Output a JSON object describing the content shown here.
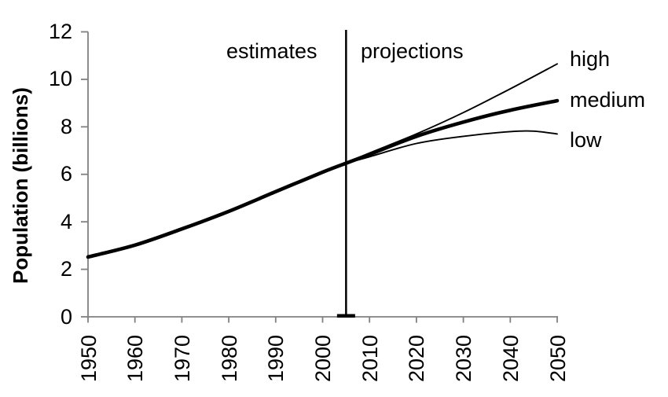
{
  "page": {
    "background": "#ffffff"
  },
  "colors": {
    "line": "#000000",
    "axis": "#808080",
    "text": "#000000",
    "background": "#ffffff"
  },
  "chart_data": {
    "type": "line",
    "title": "",
    "xlabel": "",
    "ylabel": "Population (billions)",
    "xlim": [
      1950,
      2050
    ],
    "ylim": [
      0,
      12
    ],
    "grid": false,
    "legend_position": "line-end-labels-right",
    "x_tick_labels": [
      "1950",
      "1960",
      "1970",
      "1980",
      "1990",
      "2000",
      "2010",
      "2020",
      "2030",
      "2040",
      "2050"
    ],
    "y_tick_labels": [
      "0",
      "2",
      "4",
      "6",
      "8",
      "10",
      "12"
    ],
    "divider": {
      "x": 2005
    },
    "annotations": [
      {
        "text": "estimates",
        "position": "left-of-divider-top"
      },
      {
        "text": "projections",
        "position": "right-of-divider-top"
      }
    ],
    "series": [
      {
        "name": "estimates",
        "label": "",
        "weight": "thick",
        "x": [
          1950,
          1960,
          1970,
          1980,
          1990,
          2000,
          2005
        ],
        "values": [
          2.52,
          3.02,
          3.7,
          4.44,
          5.27,
          6.09,
          6.47
        ]
      },
      {
        "name": "high",
        "label": "high",
        "weight": "thin",
        "x": [
          2005,
          2010,
          2020,
          2030,
          2040,
          2050
        ],
        "values": [
          6.47,
          6.9,
          7.7,
          8.6,
          9.6,
          10.65
        ]
      },
      {
        "name": "medium",
        "label": "medium",
        "weight": "thick",
        "x": [
          2005,
          2010,
          2020,
          2030,
          2040,
          2050
        ],
        "values": [
          6.47,
          6.84,
          7.6,
          8.2,
          8.7,
          9.1
        ]
      },
      {
        "name": "low",
        "label": "low",
        "weight": "thin",
        "x": [
          2005,
          2010,
          2020,
          2030,
          2040,
          2045,
          2050
        ],
        "values": [
          6.47,
          6.74,
          7.3,
          7.6,
          7.8,
          7.82,
          7.7
        ]
      }
    ],
    "line_labels": [
      {
        "text": "high"
      },
      {
        "text": "medium"
      },
      {
        "text": "low"
      }
    ]
  }
}
